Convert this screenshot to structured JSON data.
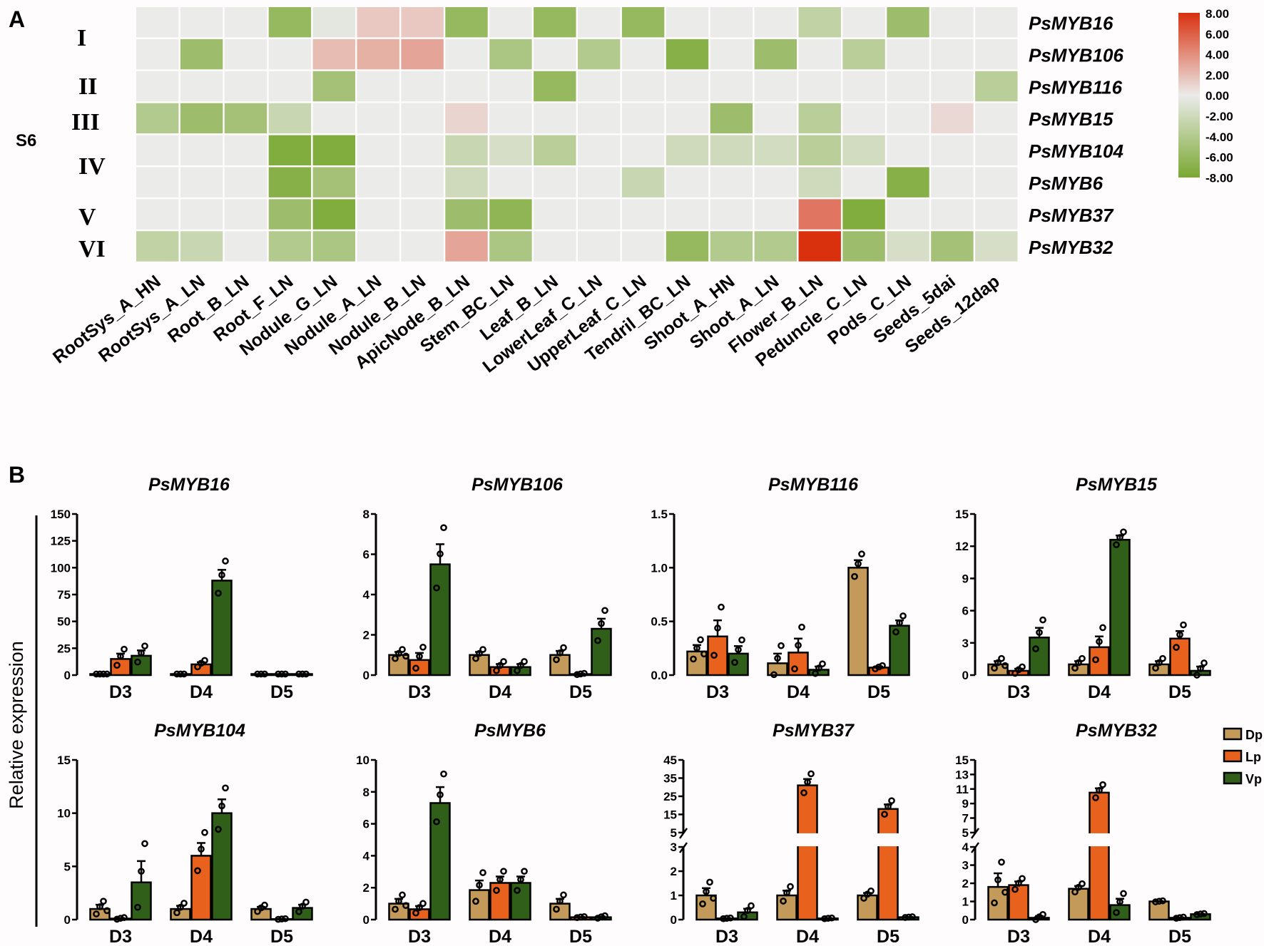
{
  "chart_data": [
    {
      "type": "heatmap",
      "panel_label": "A",
      "group_label": "S6",
      "subgroups": [
        "I",
        "II",
        "III",
        "IV",
        "V",
        "VI"
      ],
      "rows": [
        "PsMYB16",
        "PsMYB106",
        "PsMYB116",
        "PsMYB15",
        "PsMYB104",
        "PsMYB6",
        "PsMYB37",
        "PsMYB32"
      ],
      "columns": [
        "RootSys_A_HN",
        "RootSys_A_LN",
        "Root_B_LN",
        "Root_F_LN",
        "Nodule_G_LN",
        "Nodule_A_LN",
        "Nodule_B_LN",
        "ApicNode_B_LN",
        "Stem_BC_LN",
        "Leaf_B_LN",
        "LowerLeaf_C_LN",
        "UpperLeaf_C_LN",
        "Tendril_BC_LN",
        "Shoot_A_HN",
        "Shoot_A_LN",
        "Flower_B_LN",
        "Peduncle_C_LN",
        "Pods_C_LN",
        "Seeds_5dai",
        "Seeds_12dap"
      ],
      "values": [
        [
          0,
          0,
          0,
          -6,
          -0.5,
          1.5,
          1.5,
          -6,
          0,
          -6,
          0,
          -6,
          0,
          0,
          0,
          -3,
          0,
          -5.5,
          0,
          0
        ],
        [
          0,
          -5.5,
          0,
          0,
          2,
          2.5,
          3,
          0,
          -4.5,
          0,
          -4,
          0,
          -7,
          0,
          -5.5,
          0,
          -3.5,
          0,
          0,
          0
        ],
        [
          0,
          0,
          0,
          0,
          -5,
          0,
          0,
          0,
          0,
          -6,
          0,
          0,
          0,
          0,
          0,
          0,
          0,
          0,
          0,
          -3.5
        ],
        [
          -4,
          -5.5,
          -5,
          -2.5,
          0,
          0,
          0,
          1,
          0,
          0,
          0,
          0,
          0,
          -5.5,
          0,
          -3.5,
          0,
          0,
          0.8,
          0
        ],
        [
          0,
          0,
          0,
          -7.5,
          -7.5,
          0,
          0,
          -2.5,
          -1.5,
          -3.5,
          0,
          0,
          -2,
          -2,
          -1.8,
          -3.5,
          -1.8,
          0,
          0,
          0
        ],
        [
          0,
          0,
          0,
          -7,
          -5,
          0,
          0,
          -2,
          0,
          0,
          0,
          -2.5,
          0,
          0,
          0,
          -2,
          0,
          -7,
          0,
          0
        ],
        [
          0,
          0,
          0,
          -5.5,
          -7.5,
          0,
          0,
          -5.5,
          -6.5,
          0,
          0,
          0,
          0,
          0,
          0,
          5,
          -7.5,
          0,
          0,
          0
        ],
        [
          -3,
          -2.5,
          0,
          -4,
          -4.5,
          0,
          0,
          3,
          -4.5,
          0,
          0,
          0,
          -6,
          -4,
          -4,
          8,
          -5.5,
          -1.5,
          -5,
          -1.5
        ]
      ],
      "scale": {
        "min": -8,
        "max": 8,
        "ticks": [
          "8.00",
          "6.00",
          "4.00",
          "2.00",
          "0.00",
          "-2.00",
          "-4.00",
          "-6.00",
          "-8.00"
        ],
        "colors": {
          "low": "#7aa832",
          "mid": "#ebebea",
          "high": "#d9300e"
        }
      }
    },
    {
      "type": "bar",
      "panel_label": "B",
      "ylabel": "Relative expression",
      "categories": [
        "D3",
        "D4",
        "D5"
      ],
      "legend": [
        {
          "name": "Dp",
          "color": "#c49a5a"
        },
        {
          "name": "Lp",
          "color": "#e8621e"
        },
        {
          "name": "Vp",
          "color": "#2f5f18"
        }
      ],
      "legend_position": "right",
      "plots": [
        {
          "title": "PsMYB16",
          "ylim": [
            0,
            150
          ],
          "yticks": [
            "0",
            "25",
            "50",
            "75",
            "100",
            "125",
            "150"
          ],
          "values": [
            [
              1,
              15,
              18
            ],
            [
              1,
              10,
              88
            ],
            [
              1,
              1,
              1
            ]
          ],
          "errors": [
            [
              0,
              5,
              5
            ],
            [
              0,
              2,
              10
            ],
            [
              0,
              0,
              0
            ]
          ]
        },
        {
          "title": "PsMYB106",
          "ylim": [
            0,
            8
          ],
          "yticks": [
            "0",
            "2",
            "4",
            "6",
            "8"
          ],
          "values": [
            [
              1.0,
              0.75,
              5.5
            ],
            [
              1.0,
              0.4,
              0.4
            ],
            [
              1.0,
              0.05,
              2.3
            ]
          ],
          "errors": [
            [
              0.15,
              0.35,
              1.0
            ],
            [
              0.15,
              0.15,
              0.15
            ],
            [
              0.2,
              0.02,
              0.5
            ]
          ]
        },
        {
          "title": "PsMYB116",
          "ylim": [
            0,
            1.5
          ],
          "yticks": [
            "0.0",
            "0.5",
            "1.0",
            "1.5"
          ],
          "values": [
            [
              0.22,
              0.36,
              0.2
            ],
            [
              0.11,
              0.21,
              0.05
            ],
            [
              1.0,
              0.07,
              0.46
            ]
          ],
          "errors": [
            [
              0.06,
              0.15,
              0.07
            ],
            [
              0.09,
              0.13,
              0.03
            ],
            [
              0.07,
              0.01,
              0.05
            ]
          ]
        },
        {
          "title": "PsMYB15",
          "ylim": [
            0,
            15
          ],
          "yticks": [
            "0",
            "3",
            "6",
            "9",
            "12",
            "15"
          ],
          "values": [
            [
              1.0,
              0.4,
              3.5
            ],
            [
              1.0,
              2.6,
              12.6
            ],
            [
              1.0,
              3.4,
              0.4
            ]
          ],
          "errors": [
            [
              0.3,
              0.2,
              0.9
            ],
            [
              0.3,
              1.0,
              0.4
            ],
            [
              0.3,
              0.7,
              0.4
            ]
          ]
        },
        {
          "title": "PsMYB104",
          "ylim": [
            0,
            15
          ],
          "yticks": [
            "0",
            "5",
            "10",
            "15"
          ],
          "values": [
            [
              1.0,
              0.1,
              3.5
            ],
            [
              1.0,
              6.0,
              10.0
            ],
            [
              1.0,
              0.05,
              1.1
            ]
          ],
          "errors": [
            [
              0.4,
              0.05,
              2.0
            ],
            [
              0.3,
              1.2,
              1.3
            ],
            [
              0.2,
              0.02,
              0.3
            ]
          ]
        },
        {
          "title": "PsMYB6",
          "ylim": [
            0,
            10
          ],
          "yticks": [
            "0",
            "2",
            "4",
            "6",
            "8",
            "10"
          ],
          "values": [
            [
              1.0,
              0.65,
              7.3
            ],
            [
              1.85,
              2.3,
              2.3
            ],
            [
              1.0,
              0.15,
              0.15
            ]
          ],
          "errors": [
            [
              0.3,
              0.2,
              1.0
            ],
            [
              0.6,
              0.4,
              0.4
            ],
            [
              0.3,
              0.02,
              0.05
            ]
          ]
        },
        {
          "title": "PsMYB37",
          "ylim": [
            0,
            45
          ],
          "break": [
            3,
            5
          ],
          "yticks_low": [
            "0",
            "1",
            "2",
            "3"
          ],
          "yticks_high": [
            "5",
            "15",
            "25",
            "35",
            "45"
          ],
          "values": [
            [
              1.0,
              0.05,
              0.3
            ],
            [
              1.0,
              31,
              0.05
            ],
            [
              1.0,
              18,
              0.1
            ]
          ],
          "errors": [
            [
              0.3,
              0.01,
              0.15
            ],
            [
              0.2,
              3.5,
              0.01
            ],
            [
              0.1,
              2.5,
              0.01
            ]
          ]
        },
        {
          "title": "PsMYB32",
          "ylim": [
            0,
            15
          ],
          "break": [
            4,
            5
          ],
          "yticks_low": [
            "0",
            "1",
            "2",
            "3",
            "4"
          ],
          "yticks_high": [
            "5",
            "7",
            "9",
            "11",
            "13",
            "15"
          ],
          "values": [
            [
              1.8,
              1.9,
              0.1
            ],
            [
              1.7,
              10.5,
              0.8
            ],
            [
              1.0,
              0.1,
              0.3
            ]
          ],
          "errors": [
            [
              0.75,
              0.2,
              0.1
            ],
            [
              0.15,
              0.6,
              0.35
            ],
            [
              0.02,
              0.02,
              0.02
            ]
          ]
        }
      ]
    }
  ]
}
